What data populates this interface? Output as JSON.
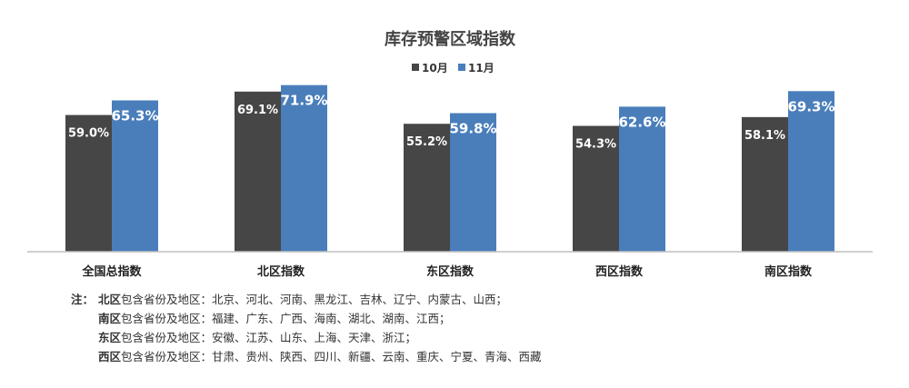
{
  "colors": {
    "oct": "#464646",
    "nov": "#4a7ebb",
    "axis": "#bfbfbf"
  },
  "chart_data": {
    "type": "bar",
    "title": "库存预警区域指数",
    "categories": [
      "全国总指数",
      "北区指数",
      "东区指数",
      "西区指数",
      "南区指数"
    ],
    "series": [
      {
        "name": "10月",
        "values": [
          59.0,
          69.1,
          55.2,
          54.3,
          58.1
        ],
        "labels": [
          "59.0%",
          "69.1%",
          "55.2%",
          "54.3%",
          "58.1%"
        ]
      },
      {
        "name": "11月",
        "values": [
          65.3,
          71.9,
          59.8,
          62.6,
          69.3
        ],
        "labels": [
          "65.3%",
          "71.9%",
          "59.8%",
          "62.6%",
          "69.3%"
        ]
      }
    ],
    "ylim": [
      0,
      100
    ],
    "grid": false,
    "legend": "top-center"
  },
  "notes": {
    "lead": "注：",
    "suffix": "包含省份及地区：",
    "lines": [
      {
        "region": "北区",
        "areas": "北京、河北、河南、黑龙江、吉林、辽宁、内蒙古、山西；"
      },
      {
        "region": "南区",
        "areas": "福建、广东、广西、海南、湖北、湖南、江西；"
      },
      {
        "region": "东区",
        "areas": "安徽、江苏、山东、上海、天津、浙江；"
      },
      {
        "region": "西区",
        "areas": "甘肃、贵州、陕西、四川、新疆、云南、重庆、宁夏、青海、西藏"
      }
    ]
  }
}
